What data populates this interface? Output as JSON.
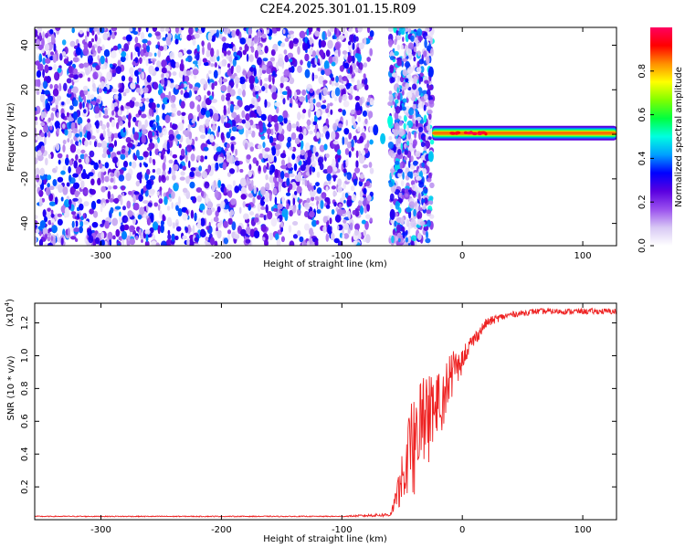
{
  "title": "C2E4.2025.301.01.15.R09",
  "charts": [
    {
      "type": "heatmap",
      "name": "spectrogram",
      "xlabel": "Height of straight line (km)",
      "ylabel": "Frequency (Hz)",
      "xlim": [
        -355,
        128
      ],
      "ylim": [
        -50,
        48
      ],
      "xticks": [
        -300,
        -200,
        -100,
        0,
        100
      ],
      "yticks": [
        -40,
        -20,
        0,
        20,
        40
      ],
      "colorbar": {
        "label": "Normalized spectral amplitude",
        "range": [
          0,
          1
        ],
        "ticks": [
          "0.0",
          "0.2",
          "0.4",
          "0.6",
          "0.8"
        ],
        "colors": [
          "#ffffff",
          "#d8c8f4",
          "#9a50ee",
          "#5a00e0",
          "#0000ff",
          "#00a0ff",
          "#00ffe0",
          "#00ff40",
          "#80ff00",
          "#ffff00",
          "#ff9000",
          "#ff0000",
          "#ff0060"
        ]
      },
      "regions": [
        {
          "name": "noise",
          "x_from": -355,
          "x_to": -75,
          "mean_amplitude": 0.15
        },
        {
          "name": "gap",
          "x_from": -75,
          "x_to": -60
        },
        {
          "name": "noise",
          "x_from": -60,
          "x_to": -25,
          "mean_amplitude": 0.18
        },
        {
          "name": "carrier",
          "x_from": -25,
          "x_to": 128,
          "frequency_hz": 0.5,
          "peak_amplitude": 1.0
        }
      ]
    },
    {
      "type": "line",
      "name": "snr",
      "xlabel": "Height of straight line (km)",
      "ylabel": "SNR (10 * v/v)",
      "scale_label": "(x10",
      "scale_exp": "4",
      "scale_close": ")",
      "xlim": [
        -355,
        128
      ],
      "ylim": [
        0,
        1.32
      ],
      "xticks": [
        -300,
        -200,
        -100,
        0,
        100
      ],
      "yticks": [
        0.2,
        0.4,
        0.6,
        0.8,
        1.0,
        1.2
      ],
      "ytick_labels": [
        "0.2",
        "0.4",
        "0.6",
        "0.8",
        "1.0",
        "1.2"
      ],
      "color": "#ee2222",
      "series": {
        "x": [
          -355,
          -300,
          -200,
          -100,
          -60,
          -55,
          -50,
          -45,
          -40,
          -35,
          -30,
          -25,
          -20,
          -15,
          -10,
          -5,
          0,
          5,
          10,
          15,
          20,
          30,
          40,
          60,
          80,
          100,
          128
        ],
        "y": [
          0.02,
          0.02,
          0.02,
          0.02,
          0.03,
          0.12,
          0.28,
          0.42,
          0.55,
          0.62,
          0.7,
          0.72,
          0.75,
          0.82,
          0.9,
          0.95,
          1.0,
          1.05,
          1.1,
          1.15,
          1.2,
          1.23,
          1.25,
          1.27,
          1.27,
          1.27,
          1.27
        ],
        "noise": [
          0.005,
          0.005,
          0.005,
          0.005,
          0.02,
          0.1,
          0.2,
          0.35,
          0.4,
          0.4,
          0.4,
          0.35,
          0.3,
          0.25,
          0.2,
          0.15,
          0.12,
          0.1,
          0.08,
          0.06,
          0.05,
          0.04,
          0.03,
          0.03,
          0.03,
          0.03,
          0.03
        ]
      }
    }
  ]
}
